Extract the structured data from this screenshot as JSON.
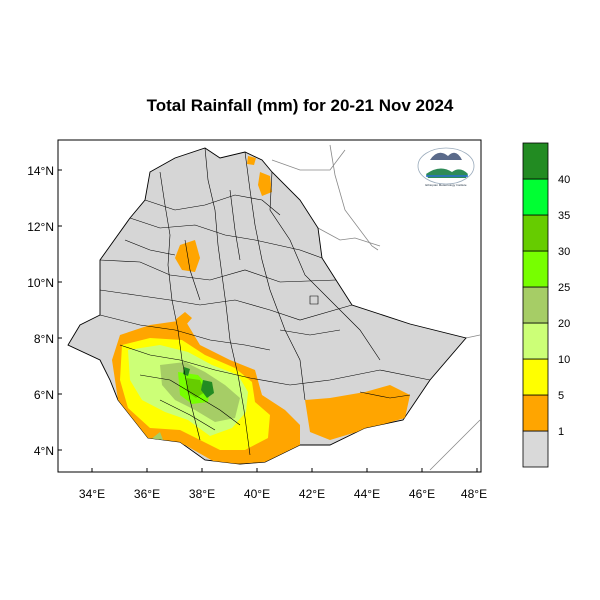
{
  "title": "Total Rainfall (mm) for 20-21 Nov 2024",
  "axes": {
    "lat_ticks": [
      "14°N",
      "12°N",
      "10°N",
      "8°N",
      "6°N",
      "4°N"
    ],
    "lon_ticks": [
      "34°E",
      "36°E",
      "38°E",
      "40°E",
      "42°E",
      "44°E",
      "46°E",
      "48°E"
    ]
  },
  "legend": {
    "labels": [
      "1",
      "5",
      "10",
      "20",
      "25",
      "30",
      "35",
      "40"
    ],
    "colors": [
      "#d9d9d9",
      "#ffa500",
      "#ffff00",
      "#ccff77",
      "#a6cd66",
      "#77ff00",
      "#66cc00",
      "#00ff33",
      "#228b22"
    ]
  },
  "logo": {
    "label": "Ethiopian Meteorology Institute"
  },
  "colors": {
    "land": "#d6d6d6",
    "border": "#000000",
    "neighbor_lines": "#888888"
  }
}
